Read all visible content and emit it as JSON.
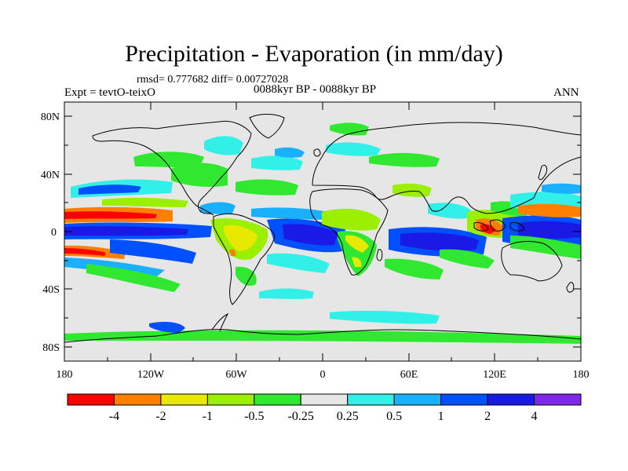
{
  "title": "Precipitation - Evaporation (in mm/day)",
  "stats": "rmsd= 0.777682  diff= 0.00727028",
  "experiment": "Expt = tevtO-teixO",
  "period": "0088kyr BP - 0088kyr BP",
  "season": "ANN",
  "y_ticks": [
    "80N",
    "40N",
    "0",
    "40S",
    "80S"
  ],
  "x_ticks": [
    "180",
    "120W",
    "60W",
    "0",
    "60E",
    "120E",
    "180"
  ],
  "colorbar": {
    "colors": [
      "#ff0000",
      "#ff8000",
      "#e8e800",
      "#9af000",
      "#30e830",
      "#e6e6e6",
      "#30f0e8",
      "#18b0ff",
      "#0050ff",
      "#1a1ae6",
      "#8028e8"
    ],
    "labels": [
      "-4",
      "-2",
      "-1",
      "-0.5",
      "-0.25",
      "0.25",
      "0.5",
      "1",
      "2",
      "4"
    ]
  },
  "colors": {
    "ocean_bg": "#e6e6e6",
    "coast": "#000000"
  }
}
